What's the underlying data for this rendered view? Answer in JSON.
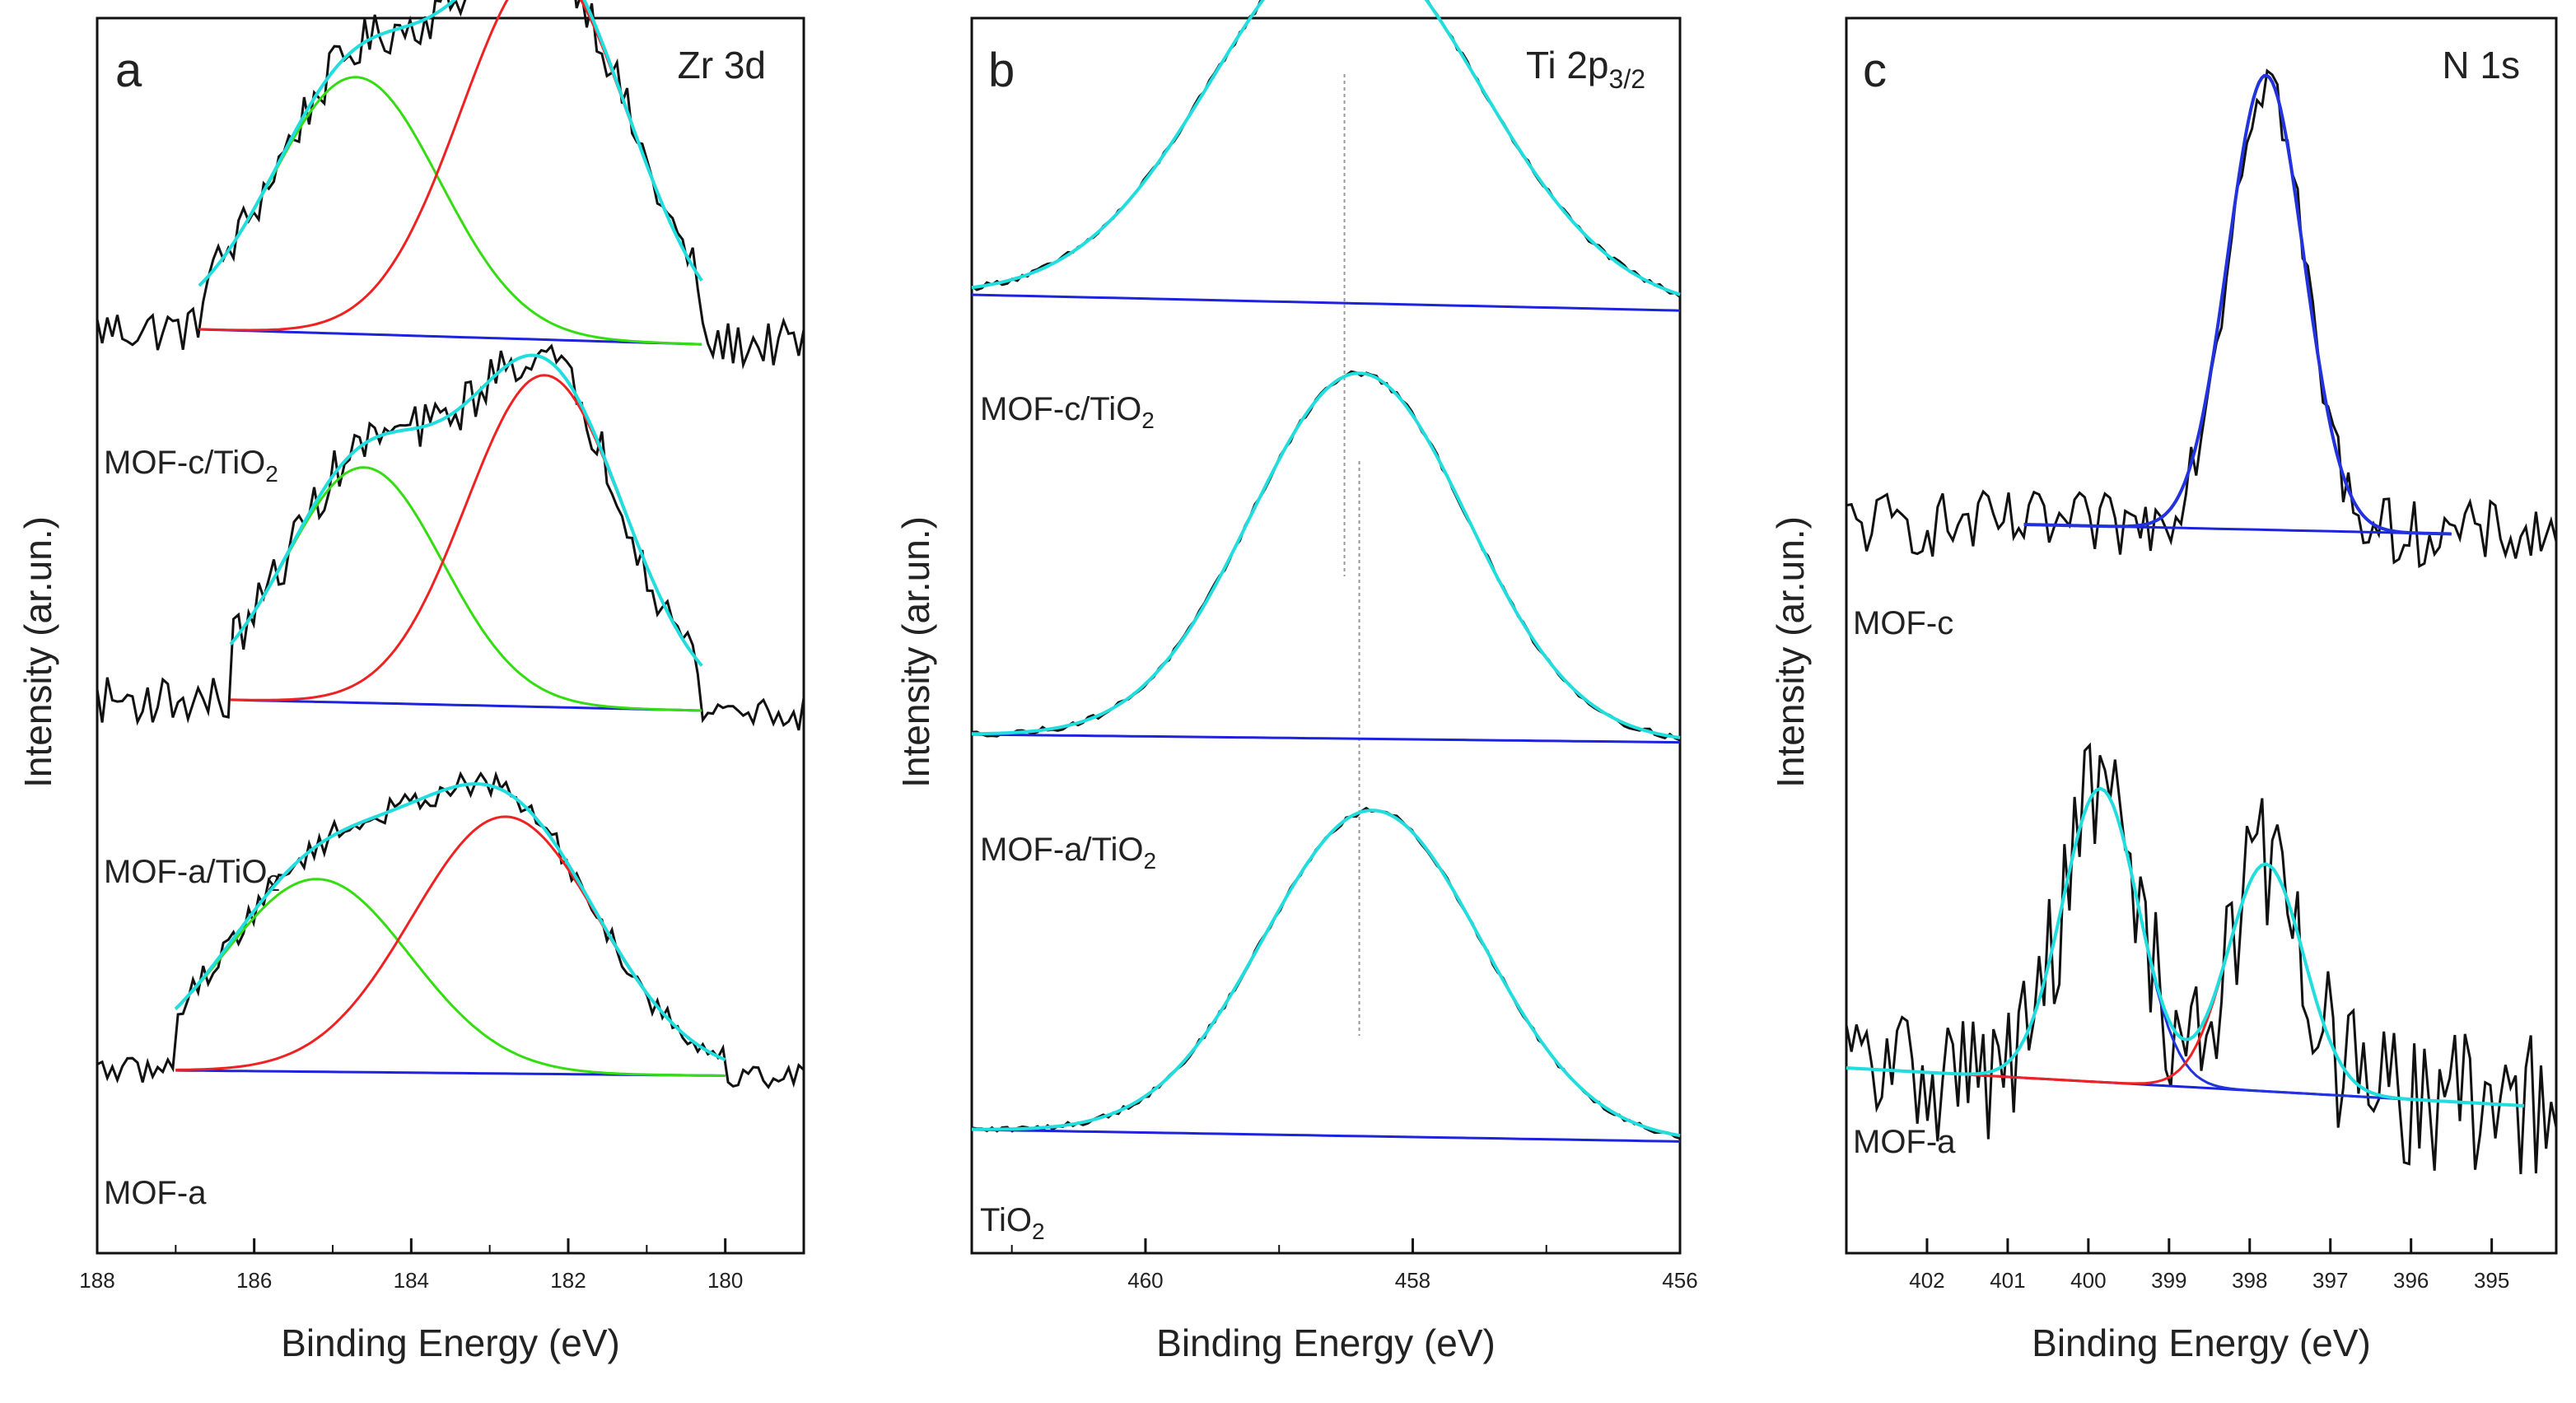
{
  "chart_data": [
    {
      "panel": "a",
      "type": "line",
      "title": "Zr 3d",
      "xlabel": "Binding Energy (eV)",
      "ylabel": "Intensity (ar.un.)",
      "x_reversed": true,
      "xlim": [
        188,
        179
      ],
      "xticks": [
        188,
        186,
        184,
        182,
        180
      ],
      "samples": [
        {
          "label": "MOF-c/TiO",
          "label_sub": "2",
          "baseline": [
            [
              186.7,
              1.0
            ],
            [
              180.3,
              0.86
            ]
          ],
          "components": [
            {
              "color": "#33dd11",
              "center": 184.7,
              "height": 2.4,
              "width": 1.7
            },
            {
              "color": "#ee2222",
              "center": 182.3,
              "height": 3.5,
              "width": 1.7
            }
          ],
          "raw_range": [
            188,
            179
          ]
        },
        {
          "label": "MOF-a/TiO",
          "label_sub": "2",
          "baseline": [
            [
              186.3,
              1.0
            ],
            [
              180.3,
              0.9
            ]
          ],
          "components": [
            {
              "color": "#33dd11",
              "center": 184.6,
              "height": 2.2,
              "width": 1.6
            },
            {
              "color": "#ee2222",
              "center": 182.3,
              "height": 3.1,
              "width": 1.6
            }
          ],
          "raw_range": [
            188,
            179
          ]
        },
        {
          "label": "MOF-a",
          "label_sub": "",
          "baseline": [
            [
              187.0,
              1.0
            ],
            [
              180.0,
              0.95
            ]
          ],
          "components": [
            {
              "color": "#33dd11",
              "center": 185.2,
              "height": 1.8,
              "width": 1.9
            },
            {
              "color": "#ee2222",
              "center": 182.8,
              "height": 2.4,
              "width": 1.9
            }
          ],
          "raw_range": [
            188,
            179
          ]
        }
      ]
    },
    {
      "panel": "b",
      "type": "line",
      "title": "Ti 2p",
      "title_sub": "3/2",
      "xlabel": "Binding Energy (eV)",
      "ylabel": "Intensity (ar.un.)",
      "x_reversed": true,
      "xlim": [
        461.3,
        456
      ],
      "xticks": [
        460,
        458,
        456
      ],
      "reference_line_x": 458.4,
      "samples": [
        {
          "label": "MOF-c/TiO",
          "label_sub": "2",
          "baseline": [
            [
              461.3,
              1.0
            ],
            [
              456,
              0.84
            ]
          ],
          "components": [
            {
              "color": "#22dddd",
              "center": 458.5,
              "height": 3.7,
              "width": 1.6
            }
          ],
          "raw_range": [
            461.3,
            456
          ]
        },
        {
          "label": "MOF-a/TiO",
          "label_sub": "2",
          "baseline": [
            [
              461.3,
              1.0
            ],
            [
              456,
              0.92
            ]
          ],
          "components": [
            {
              "color": "#22dddd",
              "center": 458.4,
              "height": 3.7,
              "width": 1.3
            }
          ],
          "raw_range": [
            461.3,
            456
          ]
        },
        {
          "label": "TiO",
          "label_sub": "2",
          "baseline": [
            [
              461.3,
              1.0
            ],
            [
              456,
              0.88
            ]
          ],
          "components": [
            {
              "color": "#22dddd",
              "center": 458.3,
              "height": 3.3,
              "width": 1.3
            }
          ],
          "raw_range": [
            461.3,
            456
          ]
        }
      ]
    },
    {
      "panel": "c",
      "type": "line",
      "title": "N 1s",
      "xlabel": "Binding Energy (eV)",
      "ylabel": "Intensity (ar.un.)",
      "x_reversed": true,
      "xlim": [
        403,
        394.2
      ],
      "xticks": [
        402,
        401,
        400,
        399,
        398,
        397,
        396,
        395
      ],
      "samples": [
        {
          "label": "MOF-c",
          "label_sub": "",
          "baseline": [
            [
              400.8,
              1.0
            ],
            [
              395.5,
              0.9
            ]
          ],
          "components": [
            {
              "color": "#2233dd",
              "center": 397.8,
              "height": 4.8,
              "width": 0.75
            }
          ],
          "envelope_color": "#2233dd",
          "raw_range": [
            403,
            394.2
          ]
        },
        {
          "label": "MOF-a",
          "label_sub": "",
          "baseline": [
            [
              403,
              1.0
            ],
            [
              394.6,
              0.6
            ]
          ],
          "components": [
            {
              "color": "#2233dd",
              "center": 399.85,
              "height": 3.1,
              "width": 0.75
            },
            {
              "color": "#ee2222",
              "center": 397.8,
              "height": 2.4,
              "width": 0.75
            }
          ],
          "raw_range": [
            403,
            394.2
          ]
        }
      ]
    }
  ]
}
